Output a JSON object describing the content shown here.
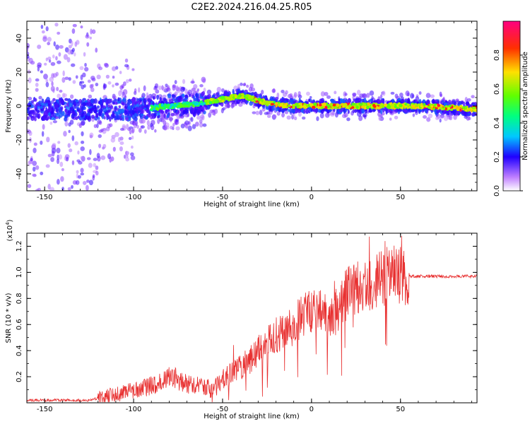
{
  "title": "C2E2.2024.216.04.25.R05",
  "chart_data": [
    {
      "type": "heatmap",
      "xlabel": "Height of straight line (km)",
      "ylabel": "Frequency (Hz)",
      "xlim": [
        -160,
        93
      ],
      "ylim": [
        -50,
        50
      ],
      "xticks": [
        -150,
        -100,
        -50,
        0,
        50
      ],
      "yticks": [
        -40,
        -20,
        0,
        20,
        40
      ],
      "grid": false,
      "ridge": {
        "x": [
          -160,
          -140,
          -120,
          -100,
          -80,
          -65,
          -55,
          -45,
          -40,
          -35,
          -30,
          -25,
          -20,
          -10,
          0,
          20,
          40,
          60,
          80,
          93
        ],
        "y": [
          -2,
          -2,
          -2,
          -2,
          0,
          1,
          3,
          5,
          6,
          5,
          3,
          2,
          1,
          0,
          0,
          0,
          0,
          0,
          -1,
          -2
        ]
      },
      "colorbar": {
        "label": "Normalized spectral amplitude",
        "range": [
          0.0,
          1.0
        ],
        "ticks": [
          "0.0",
          "0.2",
          "0.4",
          "0.6",
          "0.8"
        ],
        "tick_values": [
          0.0,
          0.2,
          0.4,
          0.6,
          0.8
        ]
      }
    },
    {
      "type": "line",
      "xlabel": "Height of straight line (km)",
      "ylabel": "SNR (10 * v/v)",
      "yscale_label": "(x10",
      "yscale_exp": "4",
      "yscale_close": ")",
      "xlim": [
        -160,
        93
      ],
      "ylim": [
        0,
        1.3
      ],
      "xticks": [
        -150,
        -100,
        -50,
        0,
        50
      ],
      "yticks": [
        "0.2",
        "0.4",
        "0.6",
        "0.8",
        "1.0",
        "1.2"
      ],
      "ytick_values": [
        0.2,
        0.4,
        0.6,
        0.8,
        1.0,
        1.2
      ],
      "color": "#e83030",
      "series": [
        {
          "name": "SNR",
          "x": [
            -160,
            -140,
            -125,
            -115,
            -105,
            -95,
            -85,
            -80,
            -75,
            -70,
            -60,
            -55,
            -50,
            -45,
            -40,
            -35,
            -30,
            -25,
            -20,
            -15,
            -10,
            -5,
            0,
            5,
            10,
            15,
            20,
            30,
            40,
            45,
            50,
            55,
            60,
            70,
            80,
            93
          ],
          "y": [
            0.02,
            0.02,
            0.02,
            0.05,
            0.08,
            0.11,
            0.15,
            0.22,
            0.18,
            0.14,
            0.12,
            0.1,
            0.18,
            0.22,
            0.27,
            0.32,
            0.4,
            0.46,
            0.52,
            0.55,
            0.6,
            0.66,
            0.7,
            0.72,
            0.62,
            0.74,
            0.84,
            0.9,
            0.95,
            1.0,
            0.98,
            0.97,
            0.97,
            0.97,
            0.97,
            0.97
          ]
        }
      ]
    }
  ]
}
